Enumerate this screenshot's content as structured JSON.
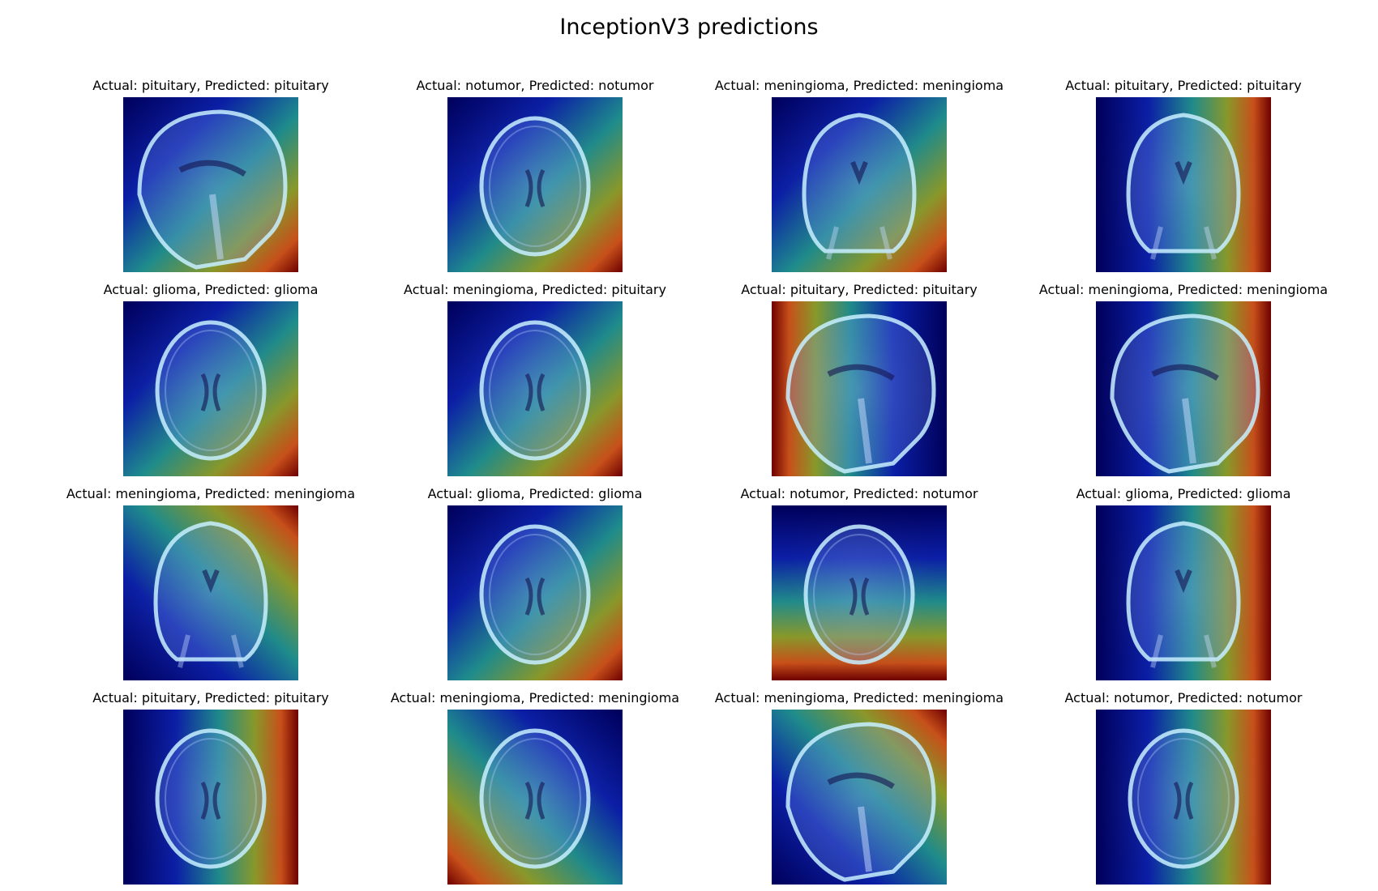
{
  "figure": {
    "title": "InceptionV3 predictions"
  },
  "panels": [
    {
      "caption": "Actual: pituitary, Predicted: pituitary",
      "view": "sagittal",
      "heat": "bottom-right"
    },
    {
      "caption": "Actual: notumor, Predicted: notumor",
      "view": "axial",
      "heat": "bottom-right"
    },
    {
      "caption": "Actual: meningioma, Predicted: meningioma",
      "view": "coronal",
      "heat": "bottom-right"
    },
    {
      "caption": "Actual: pituitary, Predicted: pituitary",
      "view": "coronal",
      "heat": "right"
    },
    {
      "caption": "Actual: glioma, Predicted: glioma",
      "view": "axial",
      "heat": "bottom-right"
    },
    {
      "caption": "Actual: meningioma, Predicted: pituitary",
      "view": "axial",
      "heat": "bottom-right"
    },
    {
      "caption": "Actual: pituitary, Predicted: pituitary",
      "view": "sagittal",
      "heat": "left"
    },
    {
      "caption": "Actual: meningioma, Predicted: meningioma",
      "view": "sagittal",
      "heat": "right"
    },
    {
      "caption": "Actual: meningioma, Predicted: meningioma",
      "view": "coronal",
      "heat": "top-right"
    },
    {
      "caption": "Actual: glioma, Predicted: glioma",
      "view": "axial",
      "heat": "bottom-right"
    },
    {
      "caption": "Actual: notumor, Predicted: notumor",
      "view": "axial",
      "heat": "bottom"
    },
    {
      "caption": "Actual: glioma, Predicted: glioma",
      "view": "coronal",
      "heat": "right"
    },
    {
      "caption": "Actual: pituitary, Predicted: pituitary",
      "view": "axial",
      "heat": "right"
    },
    {
      "caption": "Actual: meningioma, Predicted: meningioma",
      "view": "axial",
      "heat": "bottom-left"
    },
    {
      "caption": "Actual: meningioma, Predicted: meningioma",
      "view": "sagittal",
      "heat": "top-right"
    },
    {
      "caption": "Actual: notumor, Predicted: notumor",
      "view": "axial",
      "heat": "right"
    }
  ]
}
